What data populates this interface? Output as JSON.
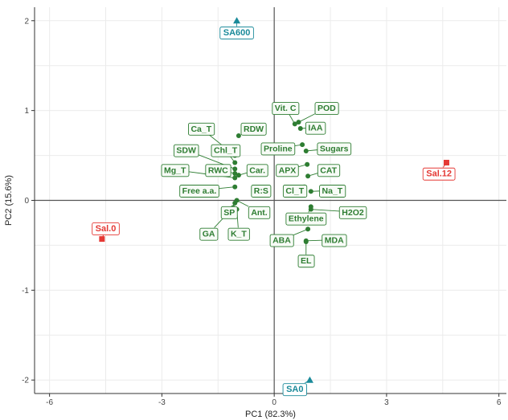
{
  "chart_data": {
    "type": "scatter",
    "xlabel": "PC1 (82.3%)",
    "ylabel": "PC2 (15.6%)",
    "xlim": [
      -6.4,
      6.2
    ],
    "ylim": [
      -2.15,
      2.15
    ],
    "x_ticks": [
      -6,
      -3,
      0,
      3,
      6
    ],
    "y_ticks": [
      -2,
      -1,
      0,
      1,
      2
    ],
    "x_tick_labels": [
      "-6",
      "-3",
      "0",
      "3",
      "6"
    ],
    "y_tick_labels": [
      "-2",
      "-1",
      "0",
      "1",
      "2"
    ],
    "grid": true,
    "colors": {
      "variables": "#2e7d32",
      "salinity": "#e53935",
      "sa": "#1a8a9a",
      "grid": "#ebebeb",
      "zero_line": "#555555"
    },
    "samples": [
      {
        "label": "SA600",
        "x": -1.0,
        "y": 2.0,
        "shape": "triangle",
        "group": "sa",
        "lx": -1.0,
        "ly": 1.87
      },
      {
        "label": "SA0",
        "x": 0.95,
        "y": -2.0,
        "shape": "triangle",
        "group": "sa",
        "lx": 0.55,
        "ly": -2.1
      },
      {
        "label": "Sal.0",
        "x": -4.6,
        "y": -0.43,
        "shape": "square",
        "group": "salinity",
        "lx": -4.5,
        "ly": -0.31
      },
      {
        "label": "Sal.12",
        "x": 4.6,
        "y": 0.42,
        "shape": "square",
        "group": "salinity",
        "lx": 4.4,
        "ly": 0.3
      }
    ],
    "variables": [
      {
        "label": "Vit. C",
        "x": 0.55,
        "y": 0.85,
        "lx": 0.3,
        "ly": 1.03
      },
      {
        "label": "POD",
        "x": 0.65,
        "y": 0.87,
        "lx": 1.4,
        "ly": 1.03
      },
      {
        "label": "IAA",
        "x": 0.7,
        "y": 0.8,
        "lx": 1.1,
        "ly": 0.81
      },
      {
        "label": "Proline",
        "x": 0.75,
        "y": 0.62,
        "lx": 0.1,
        "ly": 0.58
      },
      {
        "label": "Sugars",
        "x": 0.85,
        "y": 0.55,
        "lx": 1.6,
        "ly": 0.58
      },
      {
        "label": "APX",
        "x": 0.88,
        "y": 0.4,
        "lx": 0.35,
        "ly": 0.34
      },
      {
        "label": "CAT",
        "x": 0.9,
        "y": 0.27,
        "lx": 1.45,
        "ly": 0.34
      },
      {
        "label": "Cl_T",
        "x": 0.8,
        "y": 0.15,
        "lx": 0.55,
        "ly": 0.11
      },
      {
        "label": "Na_T",
        "x": 0.98,
        "y": 0.1,
        "lx": 1.55,
        "ly": 0.11
      },
      {
        "label": "R:S",
        "x": -0.25,
        "y": 0.12,
        "lx": -0.35,
        "ly": 0.11
      },
      {
        "label": "Ethylene",
        "x": 0.98,
        "y": -0.07,
        "lx": 0.85,
        "ly": -0.2
      },
      {
        "label": "H2O2",
        "x": 0.98,
        "y": -0.1,
        "lx": 2.1,
        "ly": -0.13
      },
      {
        "label": "ABA",
        "x": 0.9,
        "y": -0.32,
        "lx": 0.2,
        "ly": -0.44
      },
      {
        "label": "MDA",
        "x": 0.85,
        "y": -0.45,
        "lx": 1.6,
        "ly": -0.44
      },
      {
        "label": "EL",
        "x": 0.85,
        "y": -0.46,
        "lx": 0.85,
        "ly": -0.67
      },
      {
        "label": "RDW",
        "x": -0.95,
        "y": 0.72,
        "lx": -0.55,
        "ly": 0.8
      },
      {
        "label": "Ca_T",
        "x": -1.05,
        "y": 0.5,
        "lx": -1.95,
        "ly": 0.8
      },
      {
        "label": "Chl_T",
        "x": -1.05,
        "y": 0.42,
        "lx": -1.3,
        "ly": 0.56
      },
      {
        "label": "SDW",
        "x": -1.05,
        "y": 0.35,
        "lx": -2.35,
        "ly": 0.56
      },
      {
        "label": "Car.",
        "x": -0.95,
        "y": 0.28,
        "lx": -0.45,
        "ly": 0.34
      },
      {
        "label": "RWC",
        "x": -1.05,
        "y": 0.3,
        "lx": -1.5,
        "ly": 0.34
      },
      {
        "label": "Mg_T",
        "x": -1.05,
        "y": 0.25,
        "lx": -2.65,
        "ly": 0.34
      },
      {
        "label": "Free a.a.",
        "x": -1.05,
        "y": 0.15,
        "lx": -2.0,
        "ly": 0.11
      },
      {
        "label": "Ant.",
        "x": -1.0,
        "y": 0.0,
        "lx": -0.4,
        "ly": -0.13
      },
      {
        "label": "SP",
        "x": -1.05,
        "y": -0.03,
        "lx": -1.2,
        "ly": -0.13
      },
      {
        "label": "GA",
        "x": -1.1,
        "y": -0.08,
        "lx": -1.75,
        "ly": -0.37
      },
      {
        "label": "K_T",
        "x": -1.0,
        "y": -0.1,
        "lx": -0.95,
        "ly": -0.37
      }
    ]
  }
}
